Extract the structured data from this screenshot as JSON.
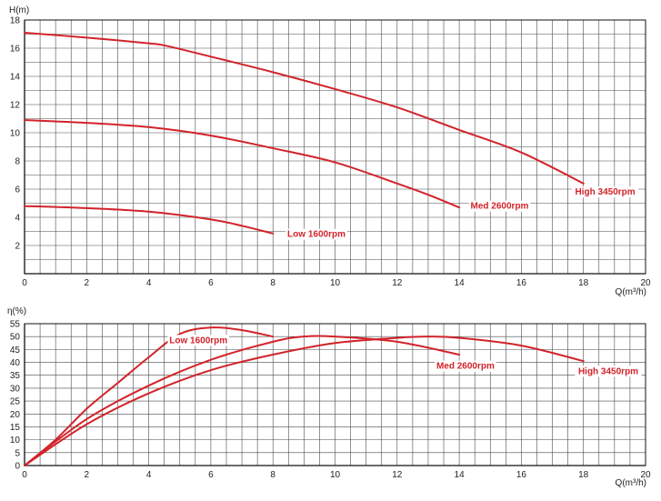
{
  "colors": {
    "curve": "#d2232a",
    "grid": "#4a4a4a",
    "axis": "#111111",
    "background": "#ffffff"
  },
  "chart_data": [
    {
      "id": "head",
      "type": "line",
      "ylabel": "H(m)",
      "xlabel": "Q(m³/h)",
      "xlim": [
        0,
        20
      ],
      "ylim": [
        0,
        18
      ],
      "x_ticks": [
        0,
        2,
        4,
        6,
        8,
        10,
        12,
        14,
        16,
        18,
        20
      ],
      "y_ticks": [
        2,
        4,
        6,
        8,
        10,
        12,
        14,
        16,
        18
      ],
      "grid": true,
      "series": [
        {
          "name": "High 3450rpm",
          "points": [
            [
              0,
              17.1
            ],
            [
              2,
              16.75
            ],
            [
              4,
              16.35
            ],
            [
              4.6,
              16.15
            ],
            [
              6,
              15.4
            ],
            [
              8,
              14.3
            ],
            [
              10,
              13.1
            ],
            [
              12,
              11.8
            ],
            [
              14,
              10.2
            ],
            [
              16,
              8.6
            ],
            [
              18,
              6.4
            ]
          ],
          "label_at": [
            18.7,
            5.6
          ]
        },
        {
          "name": "Med 2600rpm",
          "points": [
            [
              0,
              10.9
            ],
            [
              2,
              10.7
            ],
            [
              4,
              10.4
            ],
            [
              6,
              9.8
            ],
            [
              8,
              8.9
            ],
            [
              10,
              7.9
            ],
            [
              12,
              6.4
            ],
            [
              13,
              5.6
            ],
            [
              14,
              4.7
            ]
          ],
          "label_at": [
            15.3,
            4.6
          ]
        },
        {
          "name": "Low 1600rpm",
          "points": [
            [
              0,
              4.8
            ],
            [
              2,
              4.65
            ],
            [
              4,
              4.4
            ],
            [
              6,
              3.85
            ],
            [
              7,
              3.4
            ],
            [
              8,
              2.85
            ]
          ],
          "label_at": [
            9.4,
            2.6
          ]
        }
      ]
    },
    {
      "id": "efficiency",
      "type": "line",
      "ylabel": "η(%)",
      "xlabel": "Q(m³/h)",
      "xlim": [
        0,
        20
      ],
      "ylim": [
        0,
        55
      ],
      "x_ticks": [
        0,
        2,
        4,
        6,
        8,
        10,
        12,
        14,
        16,
        18,
        20
      ],
      "y_ticks": [
        0,
        5,
        10,
        15,
        20,
        25,
        30,
        35,
        40,
        45,
        50,
        55
      ],
      "grid": true,
      "series": [
        {
          "name": "Low 1600rpm",
          "points": [
            [
              0,
              0
            ],
            [
              1,
              10
            ],
            [
              2,
              22
            ],
            [
              3,
              32
            ],
            [
              4,
              42
            ],
            [
              5,
              51
            ],
            [
              6,
              53.5
            ],
            [
              7,
              52.5
            ],
            [
              8,
              50
            ]
          ],
          "label_at": [
            5.6,
            47.5
          ]
        },
        {
          "name": "Med 2600rpm",
          "points": [
            [
              0,
              0
            ],
            [
              2,
              18
            ],
            [
              4,
              31
            ],
            [
              6,
              41
            ],
            [
              8,
              48
            ],
            [
              9,
              50
            ],
            [
              10,
              50
            ],
            [
              12,
              48
            ],
            [
              14,
              43
            ]
          ],
          "label_at": [
            14.2,
            37.5
          ]
        },
        {
          "name": "High 3450rpm",
          "points": [
            [
              0,
              0
            ],
            [
              2,
              16
            ],
            [
              4,
              28
            ],
            [
              6,
              37
            ],
            [
              8,
              43
            ],
            [
              10,
              47.5
            ],
            [
              12,
              49.5
            ],
            [
              13,
              50
            ],
            [
              14,
              49.5
            ],
            [
              16,
              46.5
            ],
            [
              18,
              40.5
            ]
          ],
          "label_at": [
            18.8,
            35.5
          ]
        }
      ]
    }
  ]
}
